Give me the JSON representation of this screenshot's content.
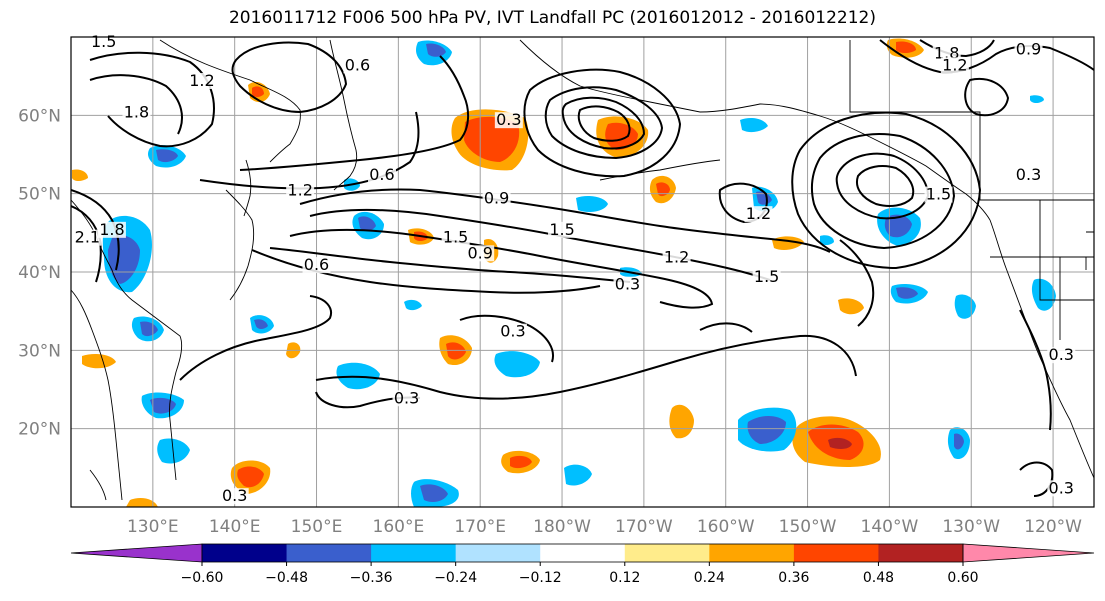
{
  "title": "2016011712 F006 500 hPa PV, IVT Landfall PC (2016012012 - 2016012212)",
  "map": {
    "lon_range": [
      120,
      245
    ],
    "lat_range": [
      10,
      70
    ],
    "latitude_ticks": [
      {
        "lat": 60,
        "label": "60°N"
      },
      {
        "lat": 50,
        "label": "50°N"
      },
      {
        "lat": 40,
        "label": "40°N"
      },
      {
        "lat": 30,
        "label": "30°N"
      },
      {
        "lat": 20,
        "label": "20°N"
      }
    ],
    "longitude_ticks": [
      {
        "lon": 130,
        "label": "130°E"
      },
      {
        "lon": 140,
        "label": "140°E"
      },
      {
        "lon": 150,
        "label": "150°E"
      },
      {
        "lon": 160,
        "label": "160°E"
      },
      {
        "lon": 170,
        "label": "170°E"
      },
      {
        "lon": 180,
        "label": "180°W"
      },
      {
        "lon": 190,
        "label": "170°W"
      },
      {
        "lon": 200,
        "label": "160°W"
      },
      {
        "lon": 210,
        "label": "150°W"
      },
      {
        "lon": 220,
        "label": "140°W"
      },
      {
        "lon": 230,
        "label": "130°W"
      },
      {
        "lon": 240,
        "label": "120°W"
      }
    ],
    "contour_labels": [
      {
        "text": "1.2",
        "lon": 136,
        "lat": 64
      },
      {
        "text": "1.8",
        "lon": 128,
        "lat": 60
      },
      {
        "text": "0.6",
        "lon": 155,
        "lat": 66
      },
      {
        "text": "1.2",
        "lon": 148,
        "lat": 50
      },
      {
        "text": "0.6",
        "lon": 158,
        "lat": 52
      },
      {
        "text": "0.3",
        "lon": 173.5,
        "lat": 59
      },
      {
        "text": "0.9",
        "lon": 172,
        "lat": 49
      },
      {
        "text": "1.5",
        "lon": 167,
        "lat": 44
      },
      {
        "text": "0.6",
        "lon": 150,
        "lat": 40.5
      },
      {
        "text": "0.9",
        "lon": 170,
        "lat": 42
      },
      {
        "text": "1.5",
        "lon": 180,
        "lat": 45
      },
      {
        "text": "1.2",
        "lon": 194,
        "lat": 41.5
      },
      {
        "text": "1.5",
        "lon": 205,
        "lat": 39
      },
      {
        "text": "0.3",
        "lon": 188,
        "lat": 38
      },
      {
        "text": "0.3",
        "lon": 174,
        "lat": 32
      },
      {
        "text": "1.2",
        "lon": 204,
        "lat": 47
      },
      {
        "text": "0.3",
        "lon": 161,
        "lat": 23.5
      },
      {
        "text": "1.5",
        "lon": 226,
        "lat": 49.5
      },
      {
        "text": "0.3",
        "lon": 237,
        "lat": 52
      },
      {
        "text": "0.9",
        "lon": 237,
        "lat": 68
      },
      {
        "text": "1.8",
        "lon": 227,
        "lat": 67.5
      },
      {
        "text": "1.2",
        "lon": 228,
        "lat": 66
      },
      {
        "text": "0.3",
        "lon": 241,
        "lat": 12
      },
      {
        "text": "0.3",
        "lon": 241,
        "lat": 29
      },
      {
        "text": "0.3",
        "lon": 140,
        "lat": 11
      },
      {
        "text": "1.5",
        "lon": 124,
        "lat": 69
      },
      {
        "text": "1.8",
        "lon": 125,
        "lat": 45
      },
      {
        "text": "2.1",
        "lon": 122,
        "lat": 44
      }
    ]
  },
  "colorbar": {
    "tick_labels": [
      "−0.60",
      "−0.48",
      "−0.36",
      "−0.24",
      "−0.12",
      "0.12",
      "0.24",
      "0.36",
      "0.48",
      "0.60"
    ],
    "colors": [
      "#9932cc",
      "#00008b",
      "#3a5fcd",
      "#00bfff",
      "#b0e2ff",
      "#ffffff",
      "#ffec8b",
      "#ffa500",
      "#ff4500",
      "#b22222",
      "#ff88aa"
    ]
  },
  "colors": {
    "grid": "#a0a0a0",
    "contour": "#000000",
    "coast": "#000000"
  }
}
